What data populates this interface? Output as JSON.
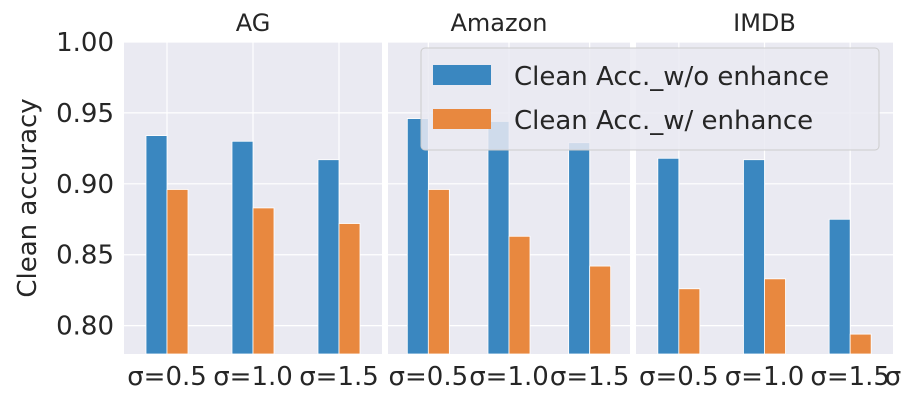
{
  "chart_data": {
    "type": "bar",
    "ylabel": "Clean accuracy",
    "ylim": [
      0.78,
      1.0
    ],
    "yticks": [
      "0.80",
      "0.85",
      "0.90",
      "0.95",
      "1.00"
    ],
    "ytick_values": [
      0.8,
      0.85,
      0.9,
      0.95,
      1.0
    ],
    "grid": true,
    "legend_position": "top-right",
    "series_colors": [
      "#3a87c0",
      "#e8883f"
    ],
    "panels": [
      {
        "title": "AG",
        "categories": [
          "σ=0.5",
          "σ=1.0",
          "σ=1.5"
        ],
        "series": [
          {
            "name": "Clean Acc._w/o enhance",
            "values": [
              0.934,
              0.93,
              0.917
            ]
          },
          {
            "name": "Clean Acc._w/ enhance",
            "values": [
              0.896,
              0.883,
              0.872
            ]
          }
        ]
      },
      {
        "title": "Amazon",
        "categories": [
          "σ=0.5",
          "σ=1.0",
          "σ=1.5"
        ],
        "series": [
          {
            "name": "Clean Acc._w/o enhance",
            "values": [
              0.946,
              0.944,
              0.929
            ]
          },
          {
            "name": "Clean Acc._w/ enhance",
            "values": [
              0.896,
              0.863,
              0.842
            ]
          }
        ]
      },
      {
        "title": "IMDB",
        "categories": [
          "σ=0.5",
          "σ=1.0",
          "σ=1.5"
        ],
        "series": [
          {
            "name": "Clean Acc._w/o enhance",
            "values": [
              0.918,
              0.917,
              0.875
            ]
          },
          {
            "name": "Clean Acc._w/ enhance",
            "values": [
              0.826,
              0.833,
              0.794
            ]
          }
        ]
      }
    ],
    "trailing_xlabel": "σ"
  }
}
